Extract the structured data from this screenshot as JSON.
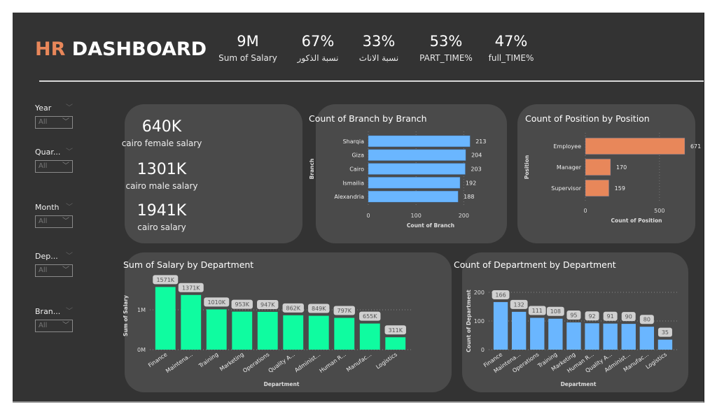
{
  "header": {
    "title_accent": "HR",
    "title_rest": "DASHBOARD",
    "kpis": [
      {
        "value": "9M",
        "label": "Sum of Salary"
      },
      {
        "value": "67%",
        "label": "نسبة الذكور"
      },
      {
        "value": "33%",
        "label": "نسبة الاناث"
      },
      {
        "value": "53%",
        "label": "PART_TIME%"
      },
      {
        "value": "47%",
        "label": "full_TIME%"
      }
    ]
  },
  "slicers": [
    {
      "label": "Year",
      "value": "All"
    },
    {
      "label": "Quar...",
      "value": "All"
    },
    {
      "label": "Month",
      "value": "All"
    },
    {
      "label": "Dep...",
      "value": "All"
    },
    {
      "label": "Bran...",
      "value": "All"
    }
  ],
  "cairo_card": {
    "items": [
      {
        "value": "640K",
        "label": "cairo female salary"
      },
      {
        "value": "1301K",
        "label": "cairo male salary"
      },
      {
        "value": "1941K",
        "label": "cairo salary"
      }
    ]
  },
  "colors": {
    "branch_bar": "#6ab6ff",
    "position_bar": "#e8875a",
    "salary_bar": "#0ffca0",
    "dept_count_bar": "#6ab6ff",
    "accent": "#e8875a"
  },
  "chart_data": [
    {
      "id": "branch",
      "type": "bar",
      "orientation": "horizontal",
      "title": "Count of Branch by Branch",
      "xlabel": "Count of Branch",
      "ylabel": "Branch",
      "categories": [
        "Sharqia",
        "Giza",
        "Cairo",
        "Ismailia",
        "Alexandria"
      ],
      "values": [
        213,
        204,
        203,
        192,
        188
      ],
      "data_labels": [
        "213",
        "204",
        "203",
        "192",
        "188"
      ],
      "xticks": [
        0,
        100,
        200
      ],
      "xtick_labels": [
        "0",
        "100",
        "200"
      ],
      "xlim": [
        0,
        220
      ],
      "grid": true
    },
    {
      "id": "position",
      "type": "bar",
      "orientation": "horizontal",
      "title": "Count of Position by Position",
      "xlabel": "Count of Position",
      "ylabel": "Position",
      "categories": [
        "Employee",
        "Manager",
        "Supervisor"
      ],
      "values": [
        671,
        170,
        159
      ],
      "data_labels": [
        "671",
        "170",
        "159"
      ],
      "xticks": [
        0,
        500
      ],
      "xtick_labels": [
        "0",
        "500"
      ],
      "xlim": [
        0,
        690
      ],
      "grid": true
    },
    {
      "id": "salary",
      "type": "bar",
      "orientation": "vertical",
      "title": "Sum of Salary by Department",
      "xlabel": "Department",
      "ylabel": "Sum of Salary",
      "categories": [
        "Finance",
        "Maintena...",
        "Training",
        "Marketing",
        "Operations",
        "Quality A...",
        "Administ...",
        "Human R...",
        "Manufac...",
        "Logistics"
      ],
      "values": [
        1571000,
        1371000,
        1010000,
        953000,
        947000,
        862000,
        849000,
        797000,
        655000,
        311000
      ],
      "data_labels": [
        "1571K",
        "1371K",
        "1010K",
        "953K",
        "947K",
        "862K",
        "849K",
        "797K",
        "655K",
        "311K"
      ],
      "yticks": [
        0,
        1000000
      ],
      "ytick_labels": [
        "0M",
        "1M"
      ],
      "ylim": [
        0,
        1700000
      ],
      "grid": true
    },
    {
      "id": "deptcount",
      "type": "bar",
      "orientation": "vertical",
      "title": "Count of Department by Department",
      "xlabel": "Department",
      "ylabel": "Count of Department",
      "categories": [
        "Finance",
        "Maintena...",
        "Operations",
        "Training",
        "Marketing",
        "Human R...",
        "Quality A...",
        "Administ...",
        "Manufac...",
        "Logistics"
      ],
      "values": [
        166,
        132,
        111,
        108,
        95,
        92,
        91,
        90,
        80,
        35
      ],
      "data_labels": [
        "166",
        "132",
        "111",
        "108",
        "95",
        "92",
        "91",
        "90",
        "80",
        "35"
      ],
      "yticks": [
        0,
        100,
        200
      ],
      "ytick_labels": [
        "0",
        "100",
        "200"
      ],
      "ylim": [
        0,
        200
      ],
      "grid": true
    }
  ]
}
